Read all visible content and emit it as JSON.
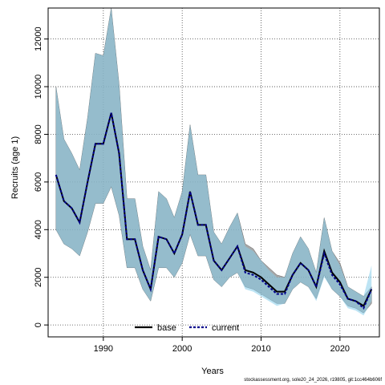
{
  "footer_text": "stockassessment.org, sole20_24_2026, r19805, git:1cc464b606f",
  "chart_data": {
    "type": "line",
    "title": "",
    "xlabel": "Years",
    "ylabel": "Recruits (age 1)",
    "xlim": [
      1983,
      2025
    ],
    "ylim": [
      -500,
      13300
    ],
    "xticks": [
      1990,
      2000,
      2010,
      2020
    ],
    "yticks": [
      0,
      2000,
      4000,
      6000,
      8000,
      10000,
      12000
    ],
    "grid": true,
    "legend_position": "bottom-center",
    "colors": {
      "base_band": "#8a8a8a",
      "current_band": "#87ceeb",
      "base_line": "#000000",
      "current_line": "#00008b"
    },
    "x": [
      1984,
      1985,
      1986,
      1987,
      1988,
      1989,
      1990,
      1991,
      1992,
      1993,
      1994,
      1995,
      1996,
      1997,
      1998,
      1999,
      2000,
      2001,
      2002,
      2003,
      2004,
      2005,
      2006,
      2007,
      2008,
      2009,
      2010,
      2011,
      2012,
      2013,
      2014,
      2015,
      2016,
      2017,
      2018,
      2019,
      2020,
      2021,
      2022,
      2023,
      2024
    ],
    "series": [
      {
        "name": "base",
        "values": [
          6300,
          5200,
          4900,
          4300,
          6000,
          7600,
          7600,
          8900,
          7200,
          3600,
          3600,
          2300,
          1500,
          3700,
          3600,
          3000,
          3800,
          5600,
          4200,
          4200,
          2700,
          2300,
          2800,
          3300,
          2300,
          2200,
          2000,
          1700,
          1400,
          1400,
          2100,
          2600,
          2300,
          1600,
          3100,
          2200,
          1800,
          1100,
          1000,
          800,
          1500
        ],
        "lower": [
          4000,
          3400,
          3200,
          2900,
          3900,
          5100,
          5100,
          5800,
          4600,
          2400,
          2400,
          1500,
          1000,
          2400,
          2400,
          2000,
          2600,
          3800,
          2900,
          2900,
          1900,
          1600,
          2000,
          2200,
          1600,
          1500,
          1300,
          1100,
          900,
          900,
          1500,
          1800,
          1600,
          1100,
          2100,
          1500,
          1200,
          800,
          700,
          500,
          900
        ],
        "upper": [
          10000,
          7800,
          7200,
          6500,
          8700,
          11400,
          11300,
          13300,
          10100,
          5300,
          5300,
          3300,
          2300,
          5600,
          5300,
          4500,
          5600,
          8400,
          6300,
          6300,
          3900,
          3400,
          4100,
          4700,
          3400,
          3200,
          2700,
          2400,
          2100,
          2000,
          3000,
          3700,
          3200,
          2200,
          4500,
          3100,
          2600,
          1600,
          1400,
          1200,
          1600
        ]
      },
      {
        "name": "current",
        "values": [
          6300,
          5200,
          4900,
          4300,
          6000,
          7600,
          7600,
          8900,
          7200,
          3600,
          3600,
          2300,
          1500,
          3700,
          3600,
          3000,
          3800,
          5600,
          4200,
          4200,
          2700,
          2300,
          2800,
          3300,
          2200,
          2100,
          1900,
          1600,
          1300,
          1300,
          2100,
          2600,
          2300,
          1600,
          3000,
          2100,
          1700,
          1100,
          1000,
          700,
          1500
        ],
        "lower": [
          4000,
          3400,
          3200,
          2900,
          3900,
          5100,
          5100,
          5800,
          4600,
          2400,
          2400,
          1500,
          1000,
          2400,
          2400,
          2000,
          2600,
          3800,
          2900,
          2900,
          1900,
          1600,
          2000,
          2200,
          1500,
          1400,
          1200,
          1000,
          800,
          900,
          1500,
          1800,
          1600,
          1000,
          2000,
          1500,
          1200,
          700,
          600,
          400,
          1000
        ],
        "upper": [
          10000,
          7800,
          7200,
          6500,
          8700,
          11400,
          11300,
          13300,
          10100,
          5300,
          5300,
          3300,
          2300,
          5600,
          5300,
          4500,
          5600,
          8400,
          6300,
          6300,
          3900,
          3400,
          4100,
          4700,
          3300,
          3100,
          2700,
          2300,
          2000,
          2000,
          3000,
          3700,
          3200,
          2200,
          4500,
          3100,
          2500,
          1600,
          1400,
          1200,
          2500
        ]
      }
    ]
  }
}
